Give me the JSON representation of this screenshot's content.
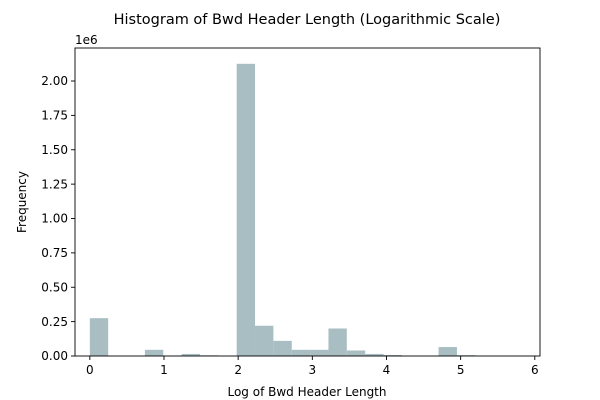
{
  "chart_data": {
    "type": "bar",
    "title": "Histogram of Bwd Header Length (Logarithmic Scale)",
    "xlabel": "Log of Bwd Header Length",
    "ylabel": "Frequency",
    "y_offset_label": "1e6",
    "bar_color": "#a9bec2",
    "xlim": [
      -0.2,
      6.07
    ],
    "ylim": [
      0,
      2.24
    ],
    "grid": false,
    "legend": "none",
    "x_ticks": [
      0,
      1,
      2,
      3,
      4,
      5,
      6
    ],
    "x_tick_labels": [
      "0",
      "1",
      "2",
      "3",
      "4",
      "5",
      "6"
    ],
    "y_ticks": [
      0,
      0.25,
      0.5,
      0.75,
      1.0,
      1.25,
      1.5,
      1.75,
      2.0
    ],
    "y_tick_labels": [
      "0.00",
      "0.25",
      "0.50",
      "0.75",
      "1.00",
      "1.25",
      "1.50",
      "1.75",
      "2.00"
    ],
    "bin_width": 0.2475,
    "bins": [
      {
        "x0": 0.0,
        "value": 0.275
      },
      {
        "x0": 0.2475,
        "value": 0.0
      },
      {
        "x0": 0.495,
        "value": 0.0
      },
      {
        "x0": 0.7425,
        "value": 0.045
      },
      {
        "x0": 0.99,
        "value": 0.003
      },
      {
        "x0": 1.2375,
        "value": 0.015
      },
      {
        "x0": 1.485,
        "value": 0.005
      },
      {
        "x0": 1.7325,
        "value": 0.0
      },
      {
        "x0": 1.98,
        "value": 2.125
      },
      {
        "x0": 2.2275,
        "value": 0.22
      },
      {
        "x0": 2.475,
        "value": 0.11
      },
      {
        "x0": 2.7225,
        "value": 0.045
      },
      {
        "x0": 2.97,
        "value": 0.045
      },
      {
        "x0": 3.2175,
        "value": 0.2
      },
      {
        "x0": 3.465,
        "value": 0.04
      },
      {
        "x0": 3.7125,
        "value": 0.015
      },
      {
        "x0": 3.96,
        "value": 0.007
      },
      {
        "x0": 4.2075,
        "value": 0.0
      },
      {
        "x0": 4.455,
        "value": 0.0
      },
      {
        "x0": 4.7025,
        "value": 0.065
      },
      {
        "x0": 4.95,
        "value": 0.006
      },
      {
        "x0": 5.1975,
        "value": 0.0
      }
    ]
  }
}
